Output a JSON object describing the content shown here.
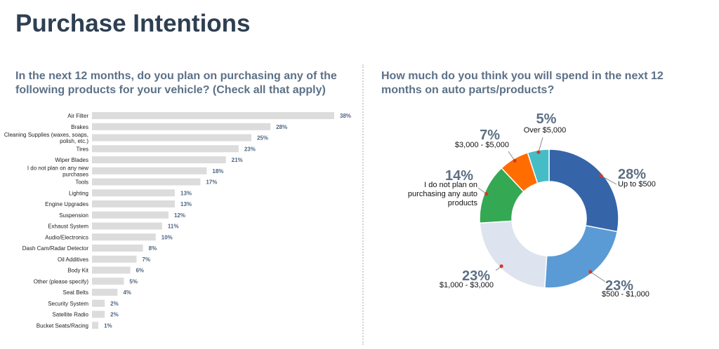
{
  "page": {
    "title": "Purchase Intentions"
  },
  "colors": {
    "title": "#2e3f52",
    "question": "#5c7187",
    "bar": "#dcdcdc",
    "bar_value": "#4e6680",
    "pct_label": "#5c6f84",
    "callout_dot": "#d23a2b"
  },
  "chart_data": [
    {
      "type": "bar",
      "orientation": "horizontal",
      "title": "In the next 12 months, do you plan on purchasing any of the following products for your vehicle? (Check all that apply)",
      "categories": [
        [
          "Air Filter"
        ],
        [
          "Brakes"
        ],
        [
          "Cleaning Supplies (waxes, soaps,",
          "polish, etc.)"
        ],
        [
          "Tires"
        ],
        [
          "Wiper Blades"
        ],
        [
          "I do not plan on any new",
          "purchases"
        ],
        [
          "Tools"
        ],
        [
          "Lighting"
        ],
        [
          "Engine Upgrades"
        ],
        [
          "Suspension"
        ],
        [
          "Exhaust System"
        ],
        [
          "Audio/Electronics"
        ],
        [
          "Dash Cam/Radar Detector"
        ],
        [
          "Oil Additives"
        ],
        [
          "Body Kit"
        ],
        [
          "Other (please specify)"
        ],
        [
          "Seat Belts"
        ],
        [
          "Security System"
        ],
        [
          "Satellite Radio"
        ],
        [
          "Bucket Seats/Racing"
        ]
      ],
      "values": [
        38,
        28,
        25,
        23,
        21,
        18,
        17,
        13,
        13,
        12,
        11,
        10,
        8,
        7,
        6,
        5,
        4,
        2,
        2,
        1
      ],
      "value_labels": [
        "38%",
        "28%",
        "25%",
        "23%",
        "21%",
        "18%",
        "17%",
        "13%",
        "13%",
        "12%",
        "11%",
        "10%",
        "8%",
        "7%",
        "6%",
        "5%",
        "4%",
        "2%",
        "2%",
        "1%"
      ],
      "unit": "%",
      "xlim": [
        0,
        38
      ],
      "grid": false,
      "legend": "none"
    },
    {
      "type": "pie",
      "variant": "donut",
      "title": "How much do you think you will spend in the next 12 months on auto parts/products?",
      "slices": [
        {
          "label": "Up to $500",
          "value": 28,
          "pct": "28%",
          "color": "#3565a8"
        },
        {
          "label": "$500 - $1,000",
          "value": 23,
          "pct": "23%",
          "color": "#5b9bd5"
        },
        {
          "label": "$1,000 - $3,000",
          "value": 23,
          "pct": "23%",
          "color": "#dde4ef"
        },
        {
          "label": "I do not plan on purchasing any auto products",
          "value": 14,
          "pct": "14%",
          "color": "#34a853"
        },
        {
          "label": "$3,000 - $5,000",
          "value": 7,
          "pct": "7%",
          "color": "#ff6d01"
        },
        {
          "label": "Over $5,000",
          "value": 5,
          "pct": "5%",
          "color": "#46bdc6"
        }
      ],
      "start": "12 o'clock, clockwise",
      "legend": "none, callout labels"
    }
  ]
}
